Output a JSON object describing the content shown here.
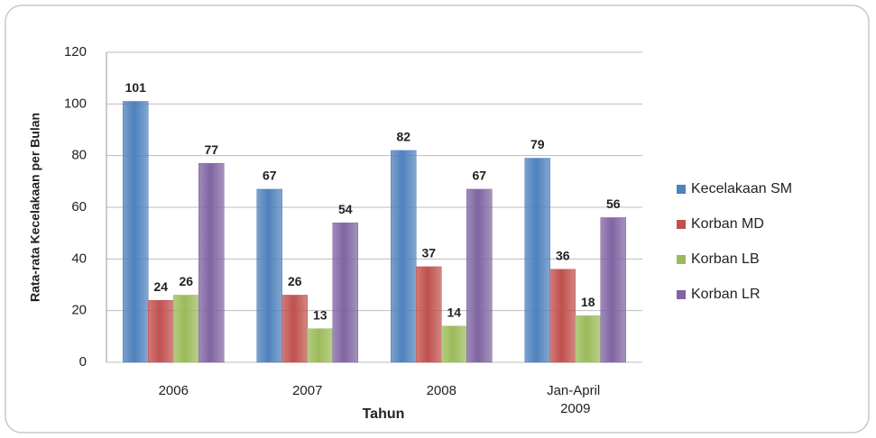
{
  "chart_data": {
    "type": "bar",
    "categories": [
      "2006",
      "2007",
      "2008",
      "Jan-April 2009"
    ],
    "series": [
      {
        "name": "Kecelakaan SM",
        "color": "#4f81bd",
        "values": [
          101,
          67,
          82,
          79
        ]
      },
      {
        "name": "Korban MD",
        "color": "#c0504d",
        "values": [
          24,
          26,
          37,
          36
        ]
      },
      {
        "name": "Korban LB",
        "color": "#9bbb59",
        "values": [
          26,
          13,
          14,
          18
        ]
      },
      {
        "name": "Korban LR",
        "color": "#8064a2",
        "values": [
          77,
          54,
          67,
          56
        ]
      }
    ],
    "ylim": [
      0,
      120
    ],
    "yticks": [
      0,
      20,
      40,
      60,
      80,
      100,
      120
    ],
    "grid": true,
    "xlabel": "Tahun",
    "ylabel": "Rata-rata Kecelakaan per Bulan",
    "legend": "right"
  }
}
